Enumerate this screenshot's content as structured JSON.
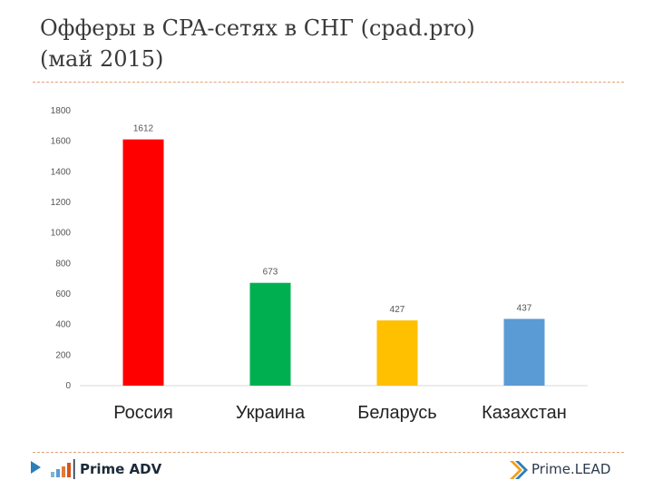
{
  "slide": {
    "title_line1": "Офферы в CPA-сетях в СНГ (cpad.pro)",
    "title_line2": "(май 2015)"
  },
  "chart_data": {
    "type": "bar",
    "title": "",
    "xlabel": "",
    "ylabel": "",
    "categories": [
      "Россия",
      "Украина",
      "Беларусь",
      "Казахстан"
    ],
    "values": [
      1612,
      673,
      427,
      437
    ],
    "colors": [
      "#ff0000",
      "#00b050",
      "#ffc000",
      "#5b9bd5"
    ],
    "ylim": [
      0,
      1800
    ],
    "yticks": [
      0,
      200,
      400,
      600,
      800,
      1000,
      1200,
      1400,
      1600,
      1800
    ],
    "grid": false,
    "legend": "none"
  },
  "footer": {
    "left_logo_text": "Prime ADV",
    "right_logo_text": "Prime.LEAD"
  }
}
